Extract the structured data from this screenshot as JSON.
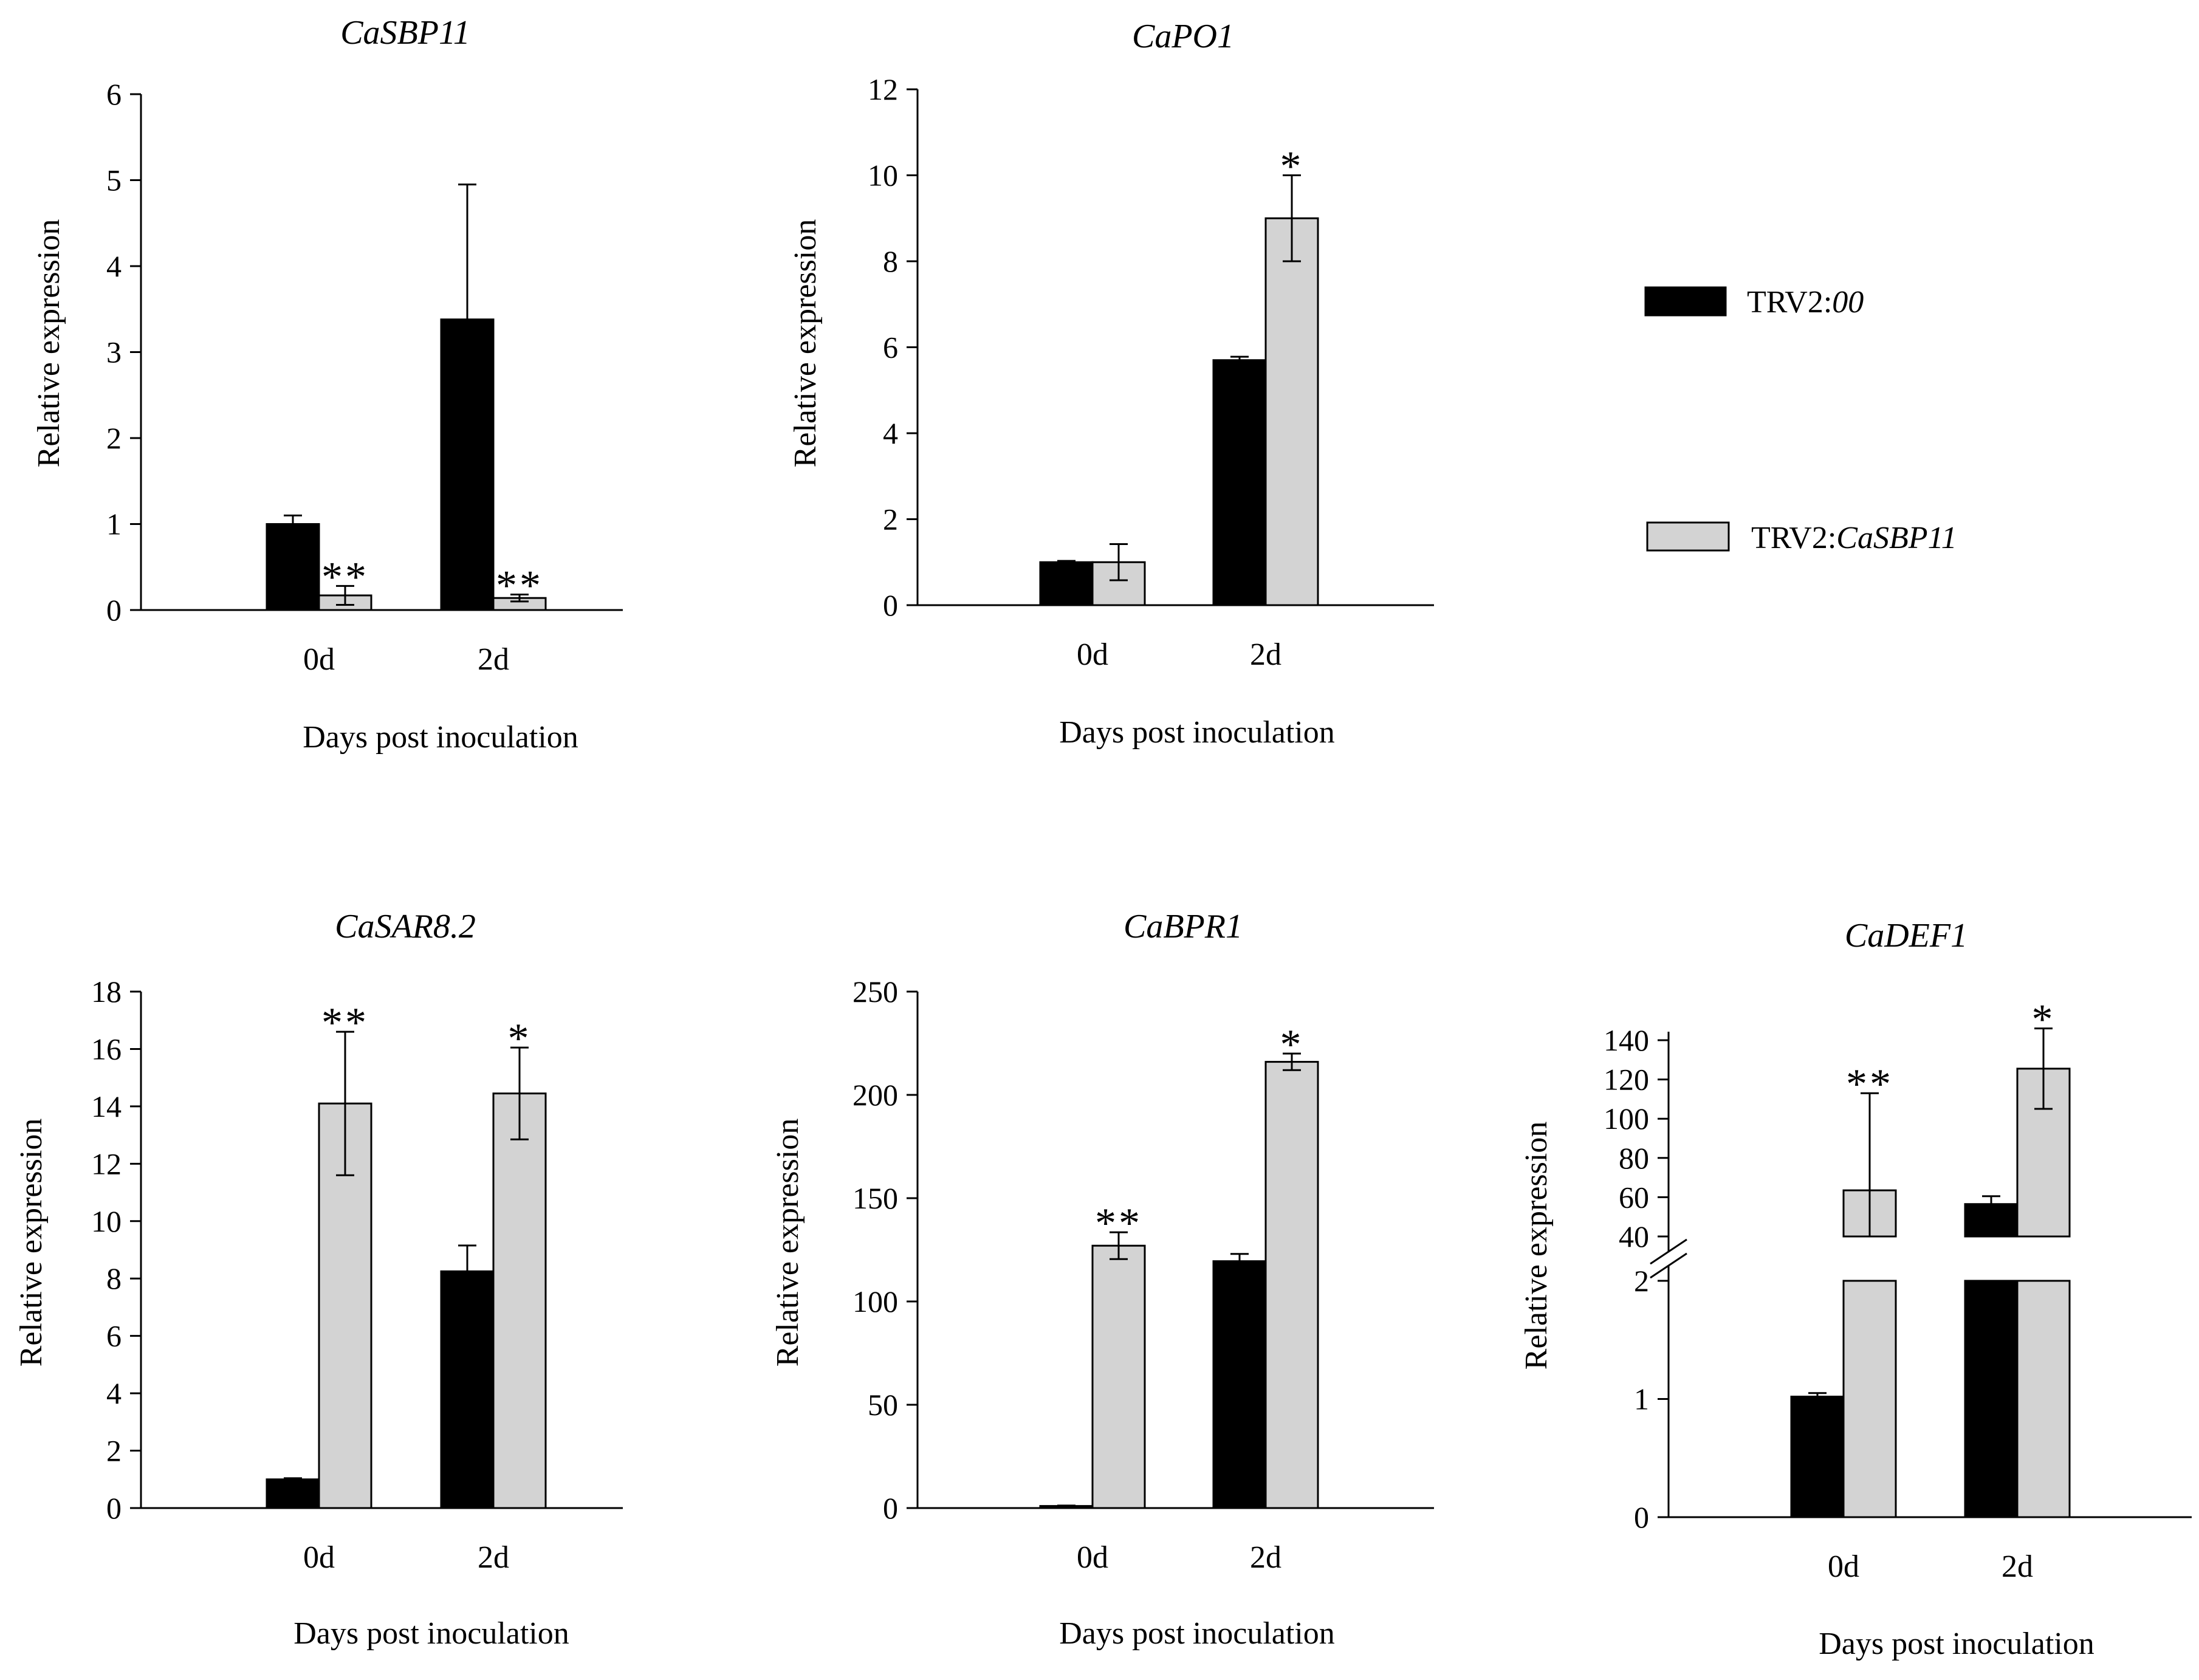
{
  "colors": {
    "ctrl": "#000000",
    "silenced": "#d3d3d3",
    "outline": "#000000"
  },
  "legend": [
    {
      "key": "ctrl",
      "prefix": "TRV2:",
      "italic": "00"
    },
    {
      "key": "silenced",
      "prefix": "TRV2:",
      "italic": "CaSBP11"
    }
  ],
  "chart_data": [
    {
      "type": "bar",
      "title": "CaSBP11",
      "xlabel": "Days post inoculation",
      "ylabel": "Relative expression",
      "categories": [
        "0d",
        "2d"
      ],
      "ylim": [
        0,
        6
      ],
      "yticks": [
        "0",
        "1",
        "2",
        "3",
        "4",
        "5",
        "6"
      ],
      "series": [
        {
          "name": "TRV2:00",
          "values": [
            1.0,
            3.38
          ],
          "errors": [
            0.1,
            1.57
          ]
        },
        {
          "name": "TRV2:CaSBP11",
          "values": [
            0.17,
            0.14
          ],
          "errors": [
            0.11,
            0.04
          ]
        }
      ],
      "significance": [
        "**",
        "**"
      ]
    },
    {
      "type": "bar",
      "title": "CaPO1",
      "xlabel": "Days post inoculation",
      "ylabel": "Relative expression",
      "categories": [
        "0d",
        "2d"
      ],
      "ylim": [
        0,
        12
      ],
      "yticks": [
        "0",
        "2",
        "4",
        "6",
        "8",
        "10",
        "12"
      ],
      "series": [
        {
          "name": "TRV2:00",
          "values": [
            1.0,
            5.7
          ],
          "errors": [
            0.03,
            0.08
          ]
        },
        {
          "name": "TRV2:CaSBP11",
          "values": [
            1.0,
            9.0
          ],
          "errors": [
            0.42,
            1.0
          ]
        }
      ],
      "significance": [
        "",
        "*"
      ]
    },
    {
      "type": "bar",
      "title": "CaSAR8.2",
      "xlabel": "Days post inoculation",
      "ylabel": "Relative expression",
      "categories": [
        "0d",
        "2d"
      ],
      "ylim": [
        0,
        18
      ],
      "yticks": [
        "0",
        "2",
        "4",
        "6",
        "8",
        "10",
        "12",
        "14",
        "16",
        "18"
      ],
      "series": [
        {
          "name": "TRV2:00",
          "values": [
            1.0,
            8.25
          ],
          "errors": [
            0.04,
            0.9
          ]
        },
        {
          "name": "TRV2:CaSBP11",
          "values": [
            14.1,
            14.45
          ],
          "errors": [
            2.5,
            1.6
          ]
        }
      ],
      "significance": [
        "**",
        "*"
      ]
    },
    {
      "type": "bar",
      "title": "CaBPR1",
      "xlabel": "Days post inoculation",
      "ylabel": "Relative expression",
      "categories": [
        "0d",
        "2d"
      ],
      "ylim": [
        0,
        250
      ],
      "yticks": [
        "0",
        "50",
        "100",
        "150",
        "200",
        "250"
      ],
      "series": [
        {
          "name": "TRV2:00",
          "values": [
            1.0,
            119.5
          ],
          "errors": [
            0.2,
            3.5
          ]
        },
        {
          "name": "TRV2:CaSBP11",
          "values": [
            127,
            216
          ],
          "errors": [
            6.5,
            4.0
          ]
        }
      ],
      "significance": [
        "**",
        "*"
      ]
    },
    {
      "type": "bar",
      "title": "CaDEF1",
      "xlabel": "Days post inoculation",
      "ylabel": "Relative expression",
      "categories": [
        "0d",
        "2d"
      ],
      "broken_axis": {
        "lower_range": [
          0,
          2
        ],
        "upper_range": [
          40,
          150
        ]
      },
      "yticks_lower": [
        "0",
        "1",
        "2"
      ],
      "yticks_upper": [
        "40",
        "60",
        "80",
        "100",
        "120",
        "140"
      ],
      "series": [
        {
          "name": "TRV2:00",
          "values": [
            1.02,
            56.5
          ],
          "errors": [
            0.03,
            4.0
          ]
        },
        {
          "name": "TRV2:CaSBP11",
          "values": [
            63.5,
            125.5
          ],
          "errors": [
            49.5,
            20.5
          ]
        }
      ],
      "significance": [
        "**",
        "*"
      ]
    }
  ]
}
